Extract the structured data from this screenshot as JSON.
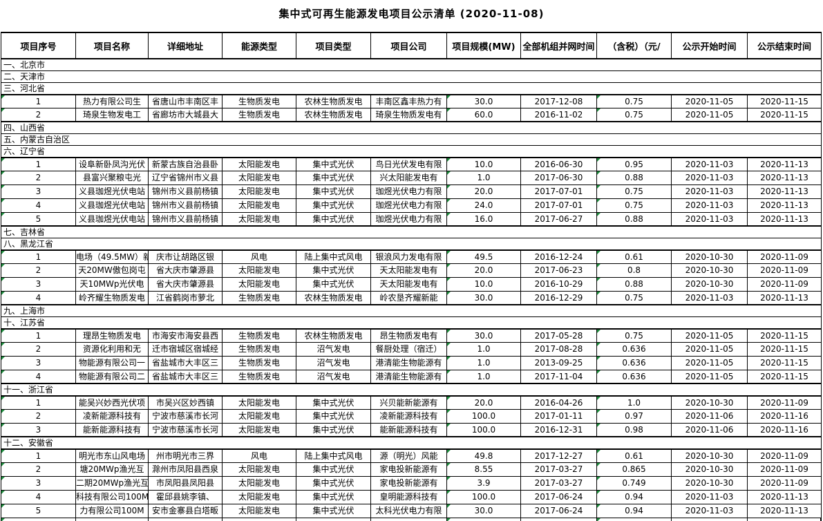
{
  "title": "集中式可再生能源发电项目公示清单 (2020-11-08)",
  "colors": {
    "border": "#000000",
    "error_triangle_green": "#1e8e3e",
    "background": "#ffffff"
  },
  "table": {
    "columns": [
      {
        "id": "project-no",
        "label": "项目序号"
      },
      {
        "id": "project-name",
        "label": "项目名称"
      },
      {
        "id": "address",
        "label": "详细地址"
      },
      {
        "id": "energy-type",
        "label": "能源类型"
      },
      {
        "id": "project-type",
        "label": "项目类型"
      },
      {
        "id": "company",
        "label": "项目公司"
      },
      {
        "id": "capacity-mw",
        "label": "项目规模(MW)"
      },
      {
        "id": "grid-date",
        "label": "全部机组并网时间"
      },
      {
        "id": "price",
        "label": "（含税）（元/"
      },
      {
        "id": "start-date",
        "label": "公示开始时间"
      },
      {
        "id": "end-date",
        "label": "公示结束时间"
      }
    ],
    "error_indicator_columns": [
      0,
      6,
      8
    ],
    "rows": [
      {
        "type": "province",
        "label": "一、北京市"
      },
      {
        "type": "province",
        "label": "二、天津市"
      },
      {
        "type": "province",
        "label": "三、河北省"
      },
      {
        "type": "data",
        "cells": [
          "1",
          "热力有限公司生",
          "省唐山市丰南区丰",
          "生物质发电",
          "农林生物质发电",
          "丰南区鑫丰热力有",
          "30.0",
          "2017-12-08",
          "0.75",
          "2020-11-05",
          "2020-11-15"
        ]
      },
      {
        "type": "data",
        "cells": [
          "2",
          "琦泉生物发电工",
          "省廊坊市大城县大",
          "生物质发电",
          "农林生物质发电",
          "琦泉生物质发电有",
          "60.0",
          "2016-11-02",
          "0.75",
          "2020-11-05",
          "2020-11-15"
        ]
      },
      {
        "type": "province",
        "label": "四、山西省"
      },
      {
        "type": "province",
        "label": "五、内蒙古自治区"
      },
      {
        "type": "province",
        "label": "六、辽宁省"
      },
      {
        "type": "data",
        "cells": [
          "1",
          "设阜新卧凤沟光伏",
          "新蒙古族自治县卧",
          "太阳能发电",
          "集中式光伏",
          "鸟日光伏发电有限",
          "10.0",
          "2016-06-30",
          "0.95",
          "2020-11-03",
          "2020-11-13"
        ]
      },
      {
        "type": "data",
        "cells": [
          "2",
          "县富兴聚粮屯光",
          "辽宁省锦州市义县",
          "太阳能发电",
          "集中式光伏",
          "兴太阳能发电有",
          "1.0",
          "2017-06-30",
          "0.88",
          "2020-11-03",
          "2020-11-13"
        ]
      },
      {
        "type": "data",
        "cells": [
          "3",
          "义县珈煜光伏电站",
          "锦州市义县前杨镇",
          "太阳能发电",
          "集中式光伏",
          "珈煜光伏电力有限",
          "20.0",
          "2017-07-01",
          "0.75",
          "2020-11-03",
          "2020-11-13"
        ]
      },
      {
        "type": "data",
        "cells": [
          "4",
          "义县珈煜光伏电站",
          "锦州市义县前杨镇",
          "太阳能发电",
          "集中式光伏",
          "珈煜光伏电力有限",
          "24.0",
          "2017-07-01",
          "0.75",
          "2020-11-03",
          "2020-11-13"
        ]
      },
      {
        "type": "data",
        "cells": [
          "5",
          "义县珈煜光伏电站",
          "锦州市义县前杨镇",
          "太阳能发电",
          "集中式光伏",
          "珈煜光伏电力有限",
          "16.0",
          "2017-06-27",
          "0.88",
          "2020-11-03",
          "2020-11-13"
        ]
      },
      {
        "type": "province",
        "label": "七、吉林省"
      },
      {
        "type": "province",
        "label": "八、黑龙江省"
      },
      {
        "type": "data",
        "cells": [
          "1",
          "电场（49.5MW）新",
          "庆市让胡路区银",
          "风电",
          "陆上集中式风电",
          "银浪风力发电有限",
          "49.5",
          "2016-12-24",
          "0.61",
          "2020-10-30",
          "2020-11-09"
        ]
      },
      {
        "type": "data",
        "cells": [
          "2",
          "天20MW傲包岗屯",
          "省大庆市肇源县",
          "太阳能发电",
          "集中式光伏",
          "天太阳能发电有",
          "20.0",
          "2017-06-23",
          "0.8",
          "2020-10-30",
          "2020-11-09"
        ]
      },
      {
        "type": "data",
        "cells": [
          "3",
          "天10MWp光伏电",
          "省大庆市肇源县",
          "太阳能发电",
          "集中式光伏",
          "天太阳能发电有",
          "10.0",
          "2016-10-29",
          "0.88",
          "2020-10-30",
          "2020-11-09"
        ]
      },
      {
        "type": "data",
        "cells": [
          "4",
          "岭齐耀生物质发电",
          "江省鹤岗市萝北",
          "生物质发电",
          "农林生物质发电",
          "岭农垦齐耀新能",
          "30.0",
          "2016-12-29",
          "0.75",
          "2020-11-03",
          "2020-11-13"
        ]
      },
      {
        "type": "province",
        "label": "九、上海市"
      },
      {
        "type": "province",
        "label": "十、江苏省"
      },
      {
        "type": "data",
        "cells": [
          "1",
          "理昂生物质发电",
          "市海安市海安县西",
          "生物质发电",
          "农林生物质发电",
          "昂生物质发电有",
          "30.0",
          "2017-05-28",
          "0.75",
          "2020-11-05",
          "2020-11-15"
        ]
      },
      {
        "type": "data",
        "cells": [
          "2",
          "资源化利用和无",
          "迁市宿城区宿城经",
          "生物质发电",
          "沼气发电",
          "餐厨处理（宿迁）",
          "1.0",
          "2017-08-28",
          "0.636",
          "2020-11-05",
          "2020-11-15"
        ]
      },
      {
        "type": "data",
        "cells": [
          "3",
          "物能源有限公司一",
          "省盐城市大丰区三",
          "生物质发电",
          "沼气发电",
          "港清能生物能源有",
          "1.0",
          "2013-09-25",
          "0.636",
          "2020-11-05",
          "2020-11-15"
        ]
      },
      {
        "type": "data",
        "cells": [
          "4",
          "物能源有限公司二",
          "省盐城市大丰区三",
          "生物质发电",
          "沼气发电",
          "港清能生物能源有",
          "1.0",
          "2017-11-04",
          "0.636",
          "2020-11-05",
          "2020-11-15"
        ]
      },
      {
        "type": "province",
        "label": "十一、浙江省"
      },
      {
        "type": "data",
        "cells": [
          "1",
          "能吴兴妙西光伏项",
          "市吴兴区妙西镇",
          "太阳能发电",
          "集中式光伏",
          "兴贝能新能源有",
          "20.0",
          "2016-04-26",
          "1.0",
          "2020-10-30",
          "2020-11-09"
        ]
      },
      {
        "type": "data",
        "cells": [
          "2",
          "凌新能源科技有",
          "宁波市慈溪市长河",
          "太阳能发电",
          "集中式光伏",
          "凌新能源科技有",
          "100.0",
          "2017-01-11",
          "0.97",
          "2020-11-06",
          "2020-11-16"
        ]
      },
      {
        "type": "data",
        "cells": [
          "3",
          "能新能源科技有",
          "宁波市慈溪市长河",
          "太阳能发电",
          "集中式光伏",
          "能新能源科技有",
          "100.0",
          "2016-12-31",
          "0.98",
          "2020-11-06",
          "2020-11-16"
        ]
      },
      {
        "type": "province",
        "label": "十二、安徽省"
      },
      {
        "type": "data",
        "cells": [
          "1",
          "明光市东山风电场",
          "州市明光市三界",
          "风电",
          "陆上集中式风电",
          "源（明光）风能",
          "49.8",
          "2017-12-27",
          "0.61",
          "2020-10-30",
          "2020-11-09"
        ]
      },
      {
        "type": "data",
        "cells": [
          "2",
          "塘20MWp渔光互",
          "滁州市凤阳县西泉",
          "太阳能发电",
          "集中式光伏",
          "家电投新能源有",
          "8.55",
          "2017-03-27",
          "0.865",
          "2020-10-30",
          "2020-11-09"
        ]
      },
      {
        "type": "data",
        "cells": [
          "3",
          "二期20MWp渔光互",
          "市凤阳县凤阳县",
          "太阳能发电",
          "集中式光伏",
          "家电投新能源有",
          "3.9",
          "2017-03-27",
          "0.749",
          "2020-10-30",
          "2020-11-09"
        ]
      },
      {
        "type": "data",
        "cells": [
          "4",
          "科技有限公司100M",
          "霍邱县姚李镇、",
          "太阳能发电",
          "集中式光伏",
          "皇明能源科技有",
          "100.0",
          "2017-06-24",
          "0.94",
          "2020-11-03",
          "2020-11-13"
        ]
      },
      {
        "type": "data",
        "cells": [
          "5",
          "力有限公司100M",
          "安市金寨县白塔畈",
          "太阳能发电",
          "集中式光伏",
          "太科光伏电力有限",
          "30.0",
          "2017-06-24",
          "0.94",
          "2020-11-03",
          "2020-11-13"
        ]
      },
      {
        "type": "partial"
      }
    ]
  }
}
